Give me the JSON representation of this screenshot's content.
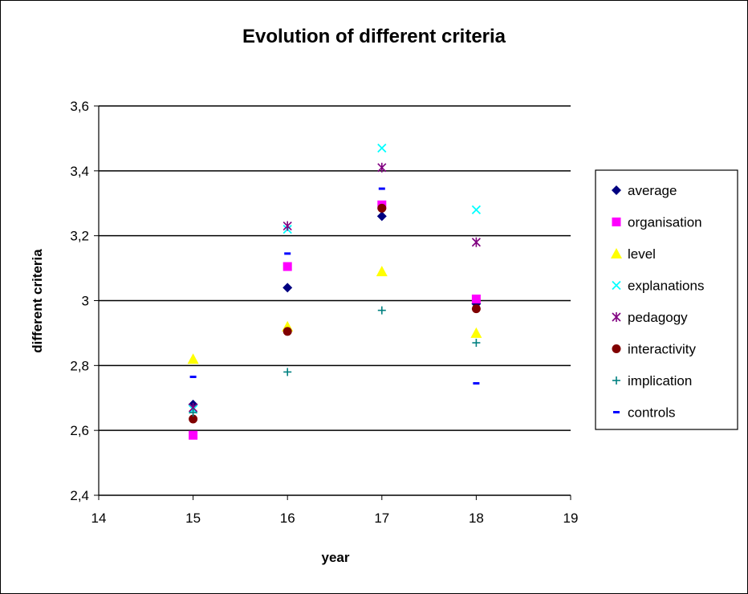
{
  "chart_data": {
    "type": "scatter",
    "title": "Evolution of different criteria",
    "xlabel": "year",
    "ylabel": "different criteria",
    "xlim": [
      14,
      19
    ],
    "ylim": [
      2.4,
      3.6
    ],
    "x_ticks": [
      "14",
      "15",
      "16",
      "17",
      "18",
      "19"
    ],
    "y_ticks": [
      "2,4",
      "2,6",
      "2,8",
      "3",
      "3,2",
      "3,4",
      "3,6"
    ],
    "grid": "horizontal major gridlines",
    "legend_position": "right",
    "series": [
      {
        "name": "average",
        "marker": "diamond",
        "color": "#000080",
        "points": [
          [
            15,
            2.68
          ],
          [
            16,
            3.04
          ],
          [
            17,
            3.26
          ],
          [
            18,
            2.99
          ]
        ]
      },
      {
        "name": "organisation",
        "marker": "square",
        "color": "#FF00FF",
        "points": [
          [
            15,
            2.585
          ],
          [
            16,
            3.105
          ],
          [
            17,
            3.295
          ],
          [
            18,
            3.005
          ]
        ]
      },
      {
        "name": "level",
        "marker": "triangle",
        "color": "#FFFF00",
        "points": [
          [
            15,
            2.82
          ],
          [
            16,
            2.92
          ],
          [
            17,
            3.09
          ],
          [
            18,
            2.9
          ]
        ]
      },
      {
        "name": "explanations",
        "marker": "x",
        "color": "#00FFFF",
        "points": [
          [
            15,
            2.665
          ],
          [
            16,
            3.22
          ],
          [
            17,
            3.47
          ],
          [
            18,
            3.28
          ]
        ]
      },
      {
        "name": "pedagogy",
        "marker": "star",
        "color": "#800080",
        "points": [
          [
            15,
            2.67
          ],
          [
            16,
            3.23
          ],
          [
            17,
            3.41
          ],
          [
            18,
            3.18
          ]
        ]
      },
      {
        "name": "interactivity",
        "marker": "circle",
        "color": "#800000",
        "points": [
          [
            15,
            2.635
          ],
          [
            16,
            2.905
          ],
          [
            17,
            3.285
          ],
          [
            18,
            2.975
          ]
        ]
      },
      {
        "name": "implication",
        "marker": "plus",
        "color": "#008080",
        "points": [
          [
            15,
            2.655
          ],
          [
            16,
            2.78
          ],
          [
            17,
            2.97
          ],
          [
            18,
            2.87
          ]
        ]
      },
      {
        "name": "controls",
        "marker": "dash",
        "color": "#0000FF",
        "points": [
          [
            15,
            2.765
          ],
          [
            16,
            3.145
          ],
          [
            17,
            3.345
          ],
          [
            18,
            2.745
          ]
        ]
      }
    ]
  }
}
